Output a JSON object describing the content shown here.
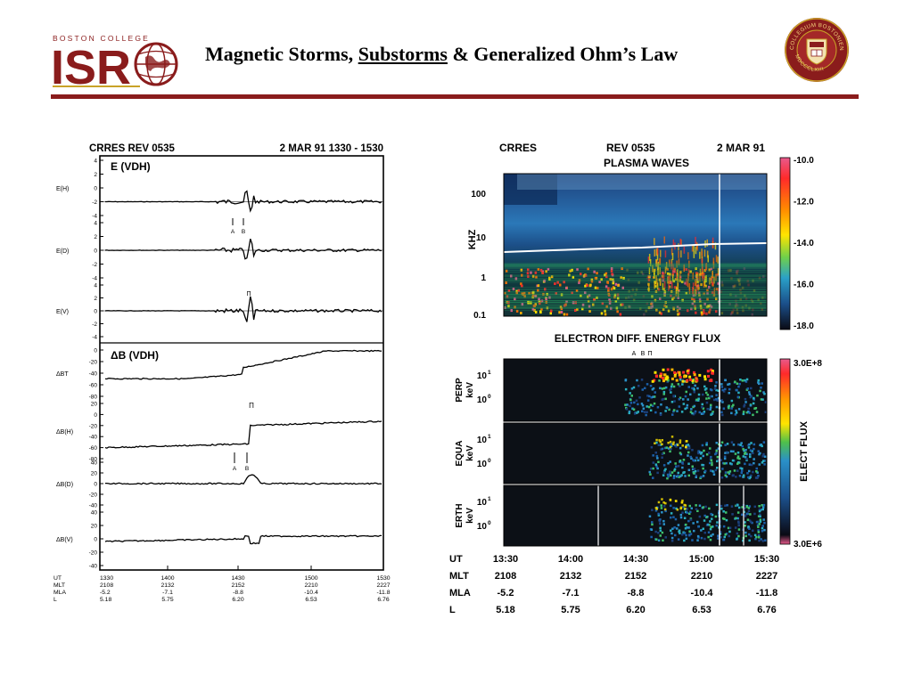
{
  "header": {
    "logo_top": "BOSTON COLLEGE",
    "logo_main": "ISR",
    "title_part1": "Magnetic Storms, ",
    "title_underlined": "Substorms",
    "title_part2": " & Generalized Ohm’s Law",
    "crest_text": "COLLEGIUM BOSTONIENSE",
    "crest_text_bottom": "MDCCCLXIII",
    "colors": {
      "maroon": "#8a1c1c",
      "gold": "#c9a227"
    }
  },
  "chart_data": [
    {
      "type": "line",
      "header_left": "CRRES  REV 0535",
      "header_right": "2 MAR 91 1330 - 1530",
      "section_e_label": "E (VDH)",
      "section_b_label": "ΔB  (VDH)",
      "panels": [
        {
          "name": "E(H)",
          "yticks": [
            "4",
            "2",
            "0",
            "-2",
            "-4"
          ]
        },
        {
          "name": "E(D)",
          "yticks": [
            "4",
            "2",
            "0",
            "-2",
            "-4"
          ]
        },
        {
          "name": "E(V)",
          "yticks": [
            "4",
            "2",
            "0",
            "-2",
            "-4"
          ]
        },
        {
          "name": "ΔBT",
          "yticks": [
            "0",
            "-20",
            "-40",
            "-60",
            "-80"
          ]
        },
        {
          "name": "ΔB(H)",
          "yticks": [
            "20",
            "0",
            "-20",
            "-40",
            "-60",
            "-80"
          ]
        },
        {
          "name": "ΔB(D)",
          "yticks": [
            "40",
            "20",
            "0",
            "-20",
            "-40"
          ]
        },
        {
          "name": "ΔB(V)",
          "yticks": [
            "40",
            "20",
            "0",
            "-20",
            "-40"
          ]
        }
      ],
      "markers": {
        "A": "A",
        "B": "B",
        "PI": "Π"
      },
      "footer_labels": [
        "UT",
        "MLT",
        "MLA",
        "L"
      ],
      "footer_columns": [
        [
          "1330",
          "2108",
          "-5.2",
          "5.18"
        ],
        [
          "1400",
          "2132",
          "-7.1",
          "5.75"
        ],
        [
          "1430",
          "2152",
          "-8.8",
          "6.20"
        ],
        [
          "1500",
          "2210",
          "-10.4",
          "6.53"
        ],
        [
          "1530",
          "2227",
          "-11.8",
          "6.76"
        ]
      ]
    },
    {
      "type": "heatmap",
      "header_left": "CRRES",
      "header_mid": "REV 0535",
      "header_right": "2 MAR 91",
      "top_title": "PLASMA WAVES",
      "top_ylabel": "KHZ",
      "top_yticks": [
        "100",
        "10",
        "1",
        "0.1"
      ],
      "top_colorbar_ticks": [
        "-10.0",
        "-12.0",
        "-14.0",
        "-16.0",
        "-18.0"
      ],
      "bottom_title": "ELECTRON DIFF. ENERGY FLUX",
      "bottom_panels": [
        {
          "name": "PERP",
          "unit": "keV"
        },
        {
          "name": "EQUA",
          "unit": "keV"
        },
        {
          "name": "ERTH",
          "unit": "keV"
        }
      ],
      "bottom_yticks": [
        "10",
        "10"
      ],
      "bottom_ytick_exponents": [
        "1",
        "0"
      ],
      "bottom_colorbar_label": "ELECT FLUX",
      "bottom_colorbar_ticks": [
        "3.0E+8",
        "3.0E+6"
      ],
      "markers": [
        "A",
        "B",
        "Π"
      ],
      "footer_labels": [
        "UT",
        "MLT",
        "MLA",
        "L"
      ],
      "footer_columns": [
        [
          "13:30",
          "2108",
          "-5.2",
          "5.18"
        ],
        [
          "14:00",
          "2132",
          "-7.1",
          "5.75"
        ],
        [
          "14:30",
          "2152",
          "-8.8",
          "6.20"
        ],
        [
          "15:00",
          "2210",
          "-10.4",
          "6.53"
        ],
        [
          "15:30",
          "2227",
          "-11.8",
          "6.76"
        ]
      ]
    }
  ]
}
